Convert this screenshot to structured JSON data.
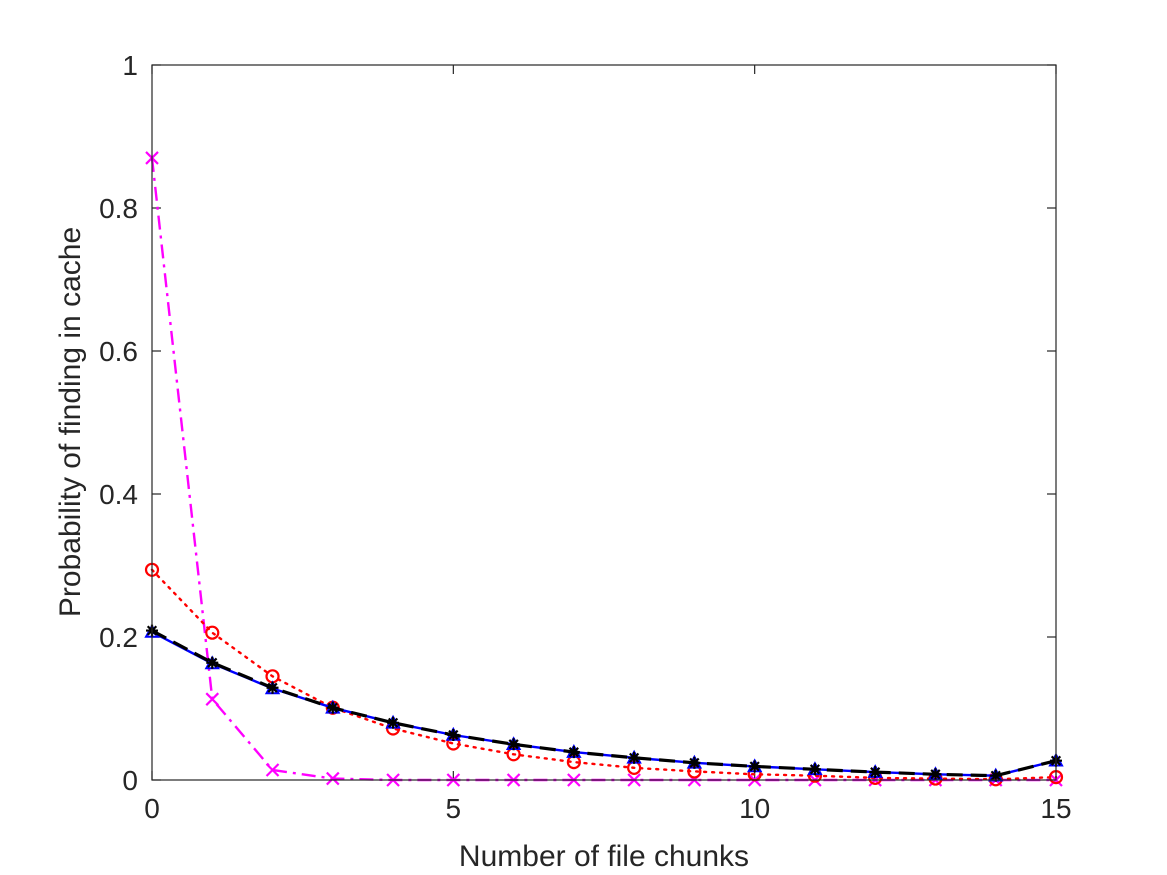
{
  "chart_data": {
    "type": "line",
    "title": "",
    "xlabel": "Number of file chunks",
    "ylabel": "Probability of finding in cache",
    "xlim": [
      0,
      15
    ],
    "ylim": [
      0,
      1
    ],
    "xticks": [
      0,
      5,
      10,
      15
    ],
    "yticks": [
      0,
      0.2,
      0.4,
      0.6,
      0.8,
      1
    ],
    "xtick_labels": [
      "0",
      "5",
      "10",
      "15"
    ],
    "ytick_labels": [
      "0",
      "0.2",
      "0.4",
      "0.6",
      "0.8",
      "1"
    ],
    "grid": false,
    "legend": "none",
    "x": [
      0,
      1,
      2,
      3,
      4,
      5,
      6,
      7,
      8,
      9,
      10,
      11,
      12,
      13,
      14,
      15
    ],
    "series": [
      {
        "color": "#0000ff",
        "line_style": "solid",
        "marker": "triangle",
        "values": [
          0.207,
          0.163,
          0.128,
          0.101,
          0.08,
          0.063,
          0.05,
          0.039,
          0.031,
          0.024,
          0.019,
          0.015,
          0.011,
          0.008,
          0.006,
          0.027
        ]
      },
      {
        "color": "#000000",
        "line_style": "dashed",
        "marker": "star",
        "values": [
          0.209,
          0.164,
          0.129,
          0.101,
          0.08,
          0.063,
          0.05,
          0.039,
          0.031,
          0.024,
          0.019,
          0.015,
          0.011,
          0.008,
          0.006,
          0.027
        ]
      },
      {
        "color": "#ff0000",
        "line_style": "dotted",
        "marker": "circle",
        "values": [
          0.294,
          0.206,
          0.145,
          0.101,
          0.072,
          0.051,
          0.036,
          0.025,
          0.017,
          0.012,
          0.008,
          0.006,
          0.003,
          0.002,
          0.001,
          0.004
        ]
      },
      {
        "color": "#ff00ff",
        "line_style": "dashdot",
        "marker": "x",
        "values": [
          0.87,
          0.113,
          0.014,
          0.002,
          0.0,
          0.0,
          0.0,
          0.0,
          0.0,
          0.0,
          0.0,
          0.0,
          0.0,
          0.0,
          0.0,
          0.0
        ]
      }
    ]
  }
}
